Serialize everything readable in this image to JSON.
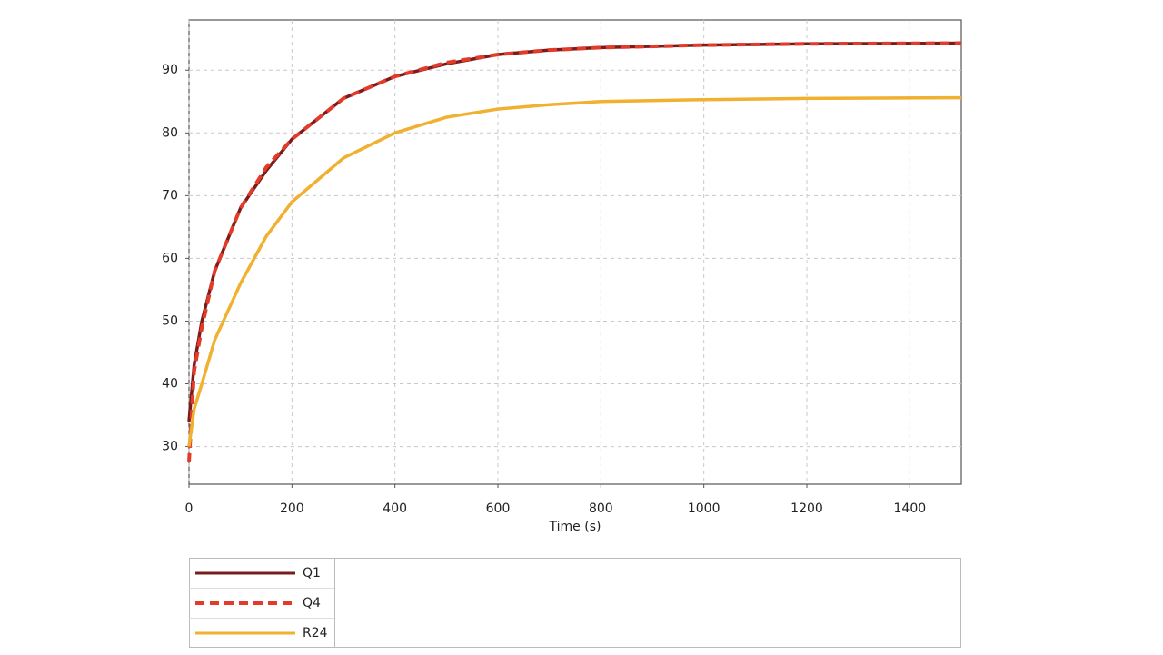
{
  "chart_data": {
    "type": "line",
    "xlabel": "Time (s)",
    "x": [
      0,
      10,
      25,
      50,
      100,
      150,
      200,
      300,
      400,
      500,
      600,
      700,
      800,
      1000,
      1200,
      1500
    ],
    "series": [
      {
        "name": "Q1",
        "color": "#7a1c1c",
        "style": "solid",
        "values": [
          34,
          43,
          50,
          58,
          68,
          74,
          79,
          85.5,
          89,
          91,
          92.5,
          93.2,
          93.6,
          94,
          94.2,
          94.3
        ]
      },
      {
        "name": "Q4",
        "color": "#e23b2a",
        "style": "dashed",
        "values": [
          27.5,
          42,
          49,
          58,
          68,
          74.5,
          79,
          85.5,
          89,
          91.2,
          92.5,
          93.2,
          93.6,
          94,
          94.2,
          94.3
        ]
      },
      {
        "name": "R24",
        "color": "#f0b030",
        "style": "solid",
        "values": [
          30,
          36,
          40,
          47,
          56,
          63.5,
          69,
          76,
          80,
          82.5,
          83.8,
          84.5,
          85,
          85.3,
          85.5,
          85.6
        ]
      }
    ],
    "xlim": [
      0,
      1500
    ],
    "xticks": [
      0,
      200,
      400,
      600,
      800,
      1000,
      1200,
      1400
    ],
    "ylim": [
      24,
      98
    ],
    "yticks": [
      30,
      40,
      50,
      60,
      70,
      80,
      90
    ],
    "grid": true
  }
}
